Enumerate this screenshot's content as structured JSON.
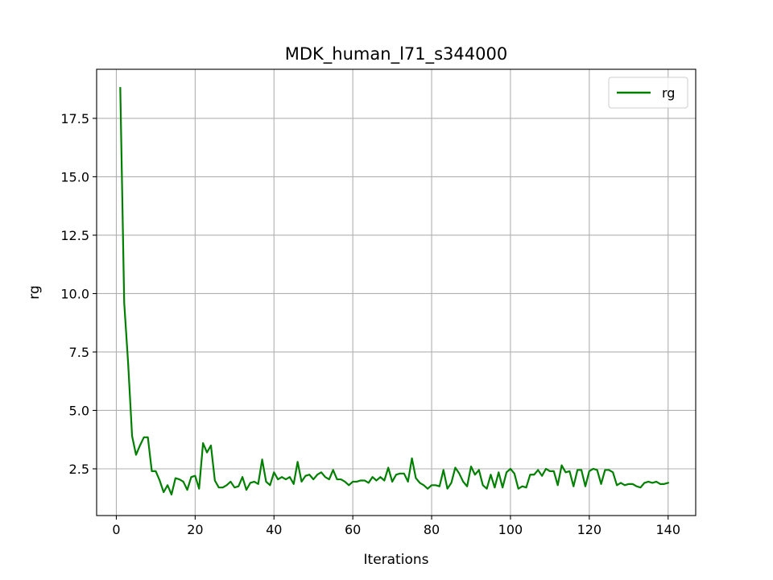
{
  "chart_data": {
    "type": "line",
    "title": "MDK_human_l71_s344000",
    "xlabel": "Iterations",
    "ylabel": "rg",
    "xlim": [
      -5,
      147
    ],
    "ylim": [
      0.5,
      19.6
    ],
    "xticks": [
      0,
      20,
      40,
      60,
      80,
      100,
      120,
      140
    ],
    "yticks": [
      2.5,
      5.0,
      7.5,
      10.0,
      12.5,
      15.0,
      17.5
    ],
    "xtick_labels": [
      "0",
      "20",
      "40",
      "60",
      "80",
      "100",
      "120",
      "140"
    ],
    "ytick_labels": [
      "2.5",
      "5.0",
      "7.5",
      "10.0",
      "12.5",
      "15.0",
      "17.5"
    ],
    "grid": true,
    "legend": {
      "location": "upper right",
      "entries": [
        "rg"
      ]
    },
    "series": [
      {
        "name": "rg",
        "color": "#008000",
        "x": [
          1,
          2,
          3,
          4,
          5,
          6,
          7,
          8,
          9,
          10,
          11,
          12,
          13,
          14,
          15,
          16,
          17,
          18,
          19,
          20,
          21,
          22,
          23,
          24,
          25,
          26,
          27,
          28,
          29,
          30,
          31,
          32,
          33,
          34,
          35,
          36,
          37,
          38,
          39,
          40,
          41,
          42,
          43,
          44,
          45,
          46,
          47,
          48,
          49,
          50,
          51,
          52,
          53,
          54,
          55,
          56,
          57,
          58,
          59,
          60,
          61,
          62,
          63,
          64,
          65,
          66,
          67,
          68,
          69,
          70,
          71,
          72,
          73,
          74,
          75,
          76,
          77,
          78,
          79,
          80,
          81,
          82,
          83,
          84,
          85,
          86,
          87,
          88,
          89,
          90,
          91,
          92,
          93,
          94,
          95,
          96,
          97,
          98,
          99,
          100,
          101,
          102,
          103,
          104,
          105,
          106,
          107,
          108,
          109,
          110,
          111,
          112,
          113,
          114,
          115,
          116,
          117,
          118,
          119,
          120,
          121,
          122,
          123,
          124,
          125,
          126,
          127,
          128,
          129,
          130,
          131,
          132,
          133,
          134,
          135,
          136,
          137,
          138,
          139,
          140
        ],
        "y": [
          18.8,
          9.6,
          7.0,
          3.9,
          3.1,
          3.5,
          3.85,
          3.85,
          2.4,
          2.4,
          2.0,
          1.5,
          1.8,
          1.4,
          2.1,
          2.05,
          1.95,
          1.6,
          2.15,
          2.2,
          1.65,
          3.6,
          3.2,
          3.5,
          2.0,
          1.7,
          1.7,
          1.8,
          1.95,
          1.7,
          1.75,
          2.15,
          1.6,
          1.9,
          1.95,
          1.85,
          2.9,
          1.95,
          1.8,
          2.35,
          2.05,
          2.15,
          2.05,
          2.15,
          1.85,
          2.8,
          1.95,
          2.2,
          2.25,
          2.05,
          2.25,
          2.35,
          2.15,
          2.05,
          2.45,
          2.05,
          2.05,
          1.95,
          1.8,
          1.95,
          1.95,
          2.0,
          2.0,
          1.9,
          2.15,
          2.0,
          2.15,
          2.0,
          2.55,
          1.95,
          2.25,
          2.3,
          2.3,
          1.95,
          2.95,
          2.1,
          1.9,
          1.8,
          1.65,
          1.8,
          1.8,
          1.75,
          2.45,
          1.65,
          1.9,
          2.55,
          2.3,
          1.95,
          1.75,
          2.6,
          2.25,
          2.45,
          1.8,
          1.65,
          2.25,
          1.7,
          2.35,
          1.7,
          2.35,
          2.5,
          2.3,
          1.65,
          1.75,
          1.7,
          2.25,
          2.25,
          2.45,
          2.2,
          2.5,
          2.4,
          2.4,
          1.8,
          2.65,
          2.35,
          2.4,
          1.75,
          2.45,
          2.45,
          1.75,
          2.4,
          2.5,
          2.45,
          1.85,
          2.45,
          2.45,
          2.35,
          1.8,
          1.9,
          1.8,
          1.85,
          1.85,
          1.75,
          1.7,
          1.9,
          1.95,
          1.9,
          1.95,
          1.85,
          1.85,
          1.9
        ]
      }
    ]
  }
}
